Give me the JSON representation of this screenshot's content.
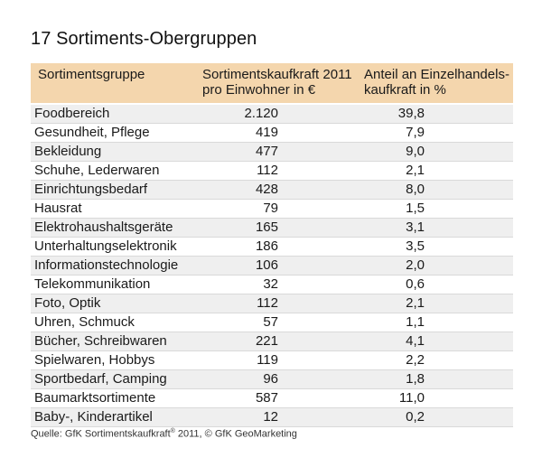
{
  "title": "17 Sortiments-Obergruppen",
  "table": {
    "headers": {
      "col1": "Sortimentsgruppe",
      "col2_line1": "Sortimentskaufkraft 2011",
      "col2_line2": "pro Einwohner in €",
      "col3_line1": "Anteil an Einzelhandels-",
      "col3_line2": "kaufkraft in %"
    },
    "rows": [
      {
        "group": "Foodbereich",
        "value": "2.120",
        "share": "39,8"
      },
      {
        "group": "Gesundheit, Pflege",
        "value": "419",
        "share": "7,9"
      },
      {
        "group": "Bekleidung",
        "value": "477",
        "share": "9,0"
      },
      {
        "group": "Schuhe, Lederwaren",
        "value": "112",
        "share": "2,1"
      },
      {
        "group": "Einrichtungsbedarf",
        "value": "428",
        "share": "8,0"
      },
      {
        "group": "Hausrat",
        "value": "79",
        "share": "1,5"
      },
      {
        "group": "Elektrohaushaltsgeräte",
        "value": "165",
        "share": "3,1"
      },
      {
        "group": "Unterhaltungselektronik",
        "value": "186",
        "share": "3,5"
      },
      {
        "group": "Informationstechnologie",
        "value": "106",
        "share": "2,0"
      },
      {
        "group": "Telekommunikation",
        "value": "32",
        "share": "0,6"
      },
      {
        "group": "Foto, Optik",
        "value": "112",
        "share": "2,1"
      },
      {
        "group": "Uhren, Schmuck",
        "value": "57",
        "share": "1,1"
      },
      {
        "group": "Bücher, Schreibwaren",
        "value": "221",
        "share": "4,1"
      },
      {
        "group": "Spielwaren, Hobbys",
        "value": "119",
        "share": "2,2"
      },
      {
        "group": "Sportbedarf, Camping",
        "value": "96",
        "share": "1,8"
      },
      {
        "group": "Baumarktsortimente",
        "value": "587",
        "share": "11,0"
      },
      {
        "group": "Baby-, Kinderartikel",
        "value": "12",
        "share": "0,2"
      }
    ]
  },
  "source": {
    "prefix": "Quelle: GfK Sortimentskaufkraft",
    "sup": "®",
    "suffix": " 2011, © GfK GeoMarketing"
  },
  "colors": {
    "header_bg": "#f4d6ad",
    "alt_row_bg": "#efefef"
  }
}
